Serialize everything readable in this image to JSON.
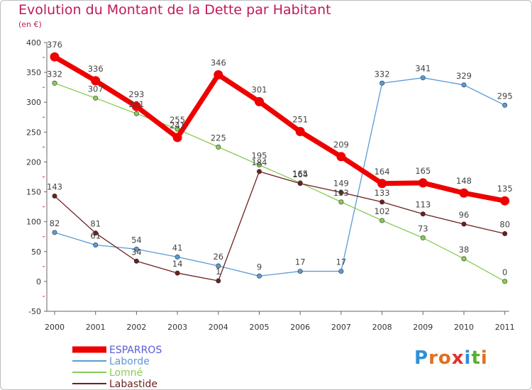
{
  "chart_data": {
    "type": "line",
    "title": "Evolution du Montant de la Dette par Habitant",
    "subtitle": "(en €)",
    "categories": [
      "2000",
      "2001",
      "2002",
      "2003",
      "2004",
      "2005",
      "2006",
      "2007",
      "2008",
      "2009",
      "2010",
      "2011"
    ],
    "ylim": [
      -50,
      400
    ],
    "yticks": [
      -50,
      0,
      50,
      100,
      150,
      200,
      250,
      300,
      350,
      400
    ],
    "grid": false,
    "legend_position": "bottom-left",
    "series": [
      {
        "name": "ESPARROS",
        "color": "#ee0000",
        "labelColor": "#5b5bd6",
        "width": 7,
        "values": [
          376,
          336,
          293,
          241,
          346,
          301,
          251,
          209,
          164,
          165,
          148,
          135
        ]
      },
      {
        "name": "Laborde",
        "color": "#5b9bd5",
        "labelColor": "#5b9bd5",
        "width": 1.3,
        "values": [
          82,
          61,
          54,
          41,
          26,
          9,
          17,
          17,
          332,
          341,
          329,
          295
        ]
      },
      {
        "name": "Lomné",
        "color": "#88cc55",
        "labelColor": "#88cc55",
        "width": 1.3,
        "values": [
          332,
          307,
          281,
          255,
          225,
          195,
          165,
          133,
          102,
          73,
          38,
          0
        ]
      },
      {
        "name": "Labastide",
        "color": "#6e1f1f",
        "labelColor": "#6e1f1f",
        "width": 1.3,
        "values": [
          143,
          81,
          34,
          14,
          1,
          184,
          164,
          149,
          133,
          113,
          96,
          80
        ]
      }
    ]
  },
  "logo": {
    "text": "Proxiti",
    "letters": [
      "P",
      "r",
      "o",
      "x",
      "i",
      "t",
      "i"
    ],
    "colors": [
      "#2f8fd8",
      "#e07020",
      "#e07020",
      "#e0302a",
      "#2f8fd8",
      "#58b030",
      "#e07020"
    ]
  }
}
